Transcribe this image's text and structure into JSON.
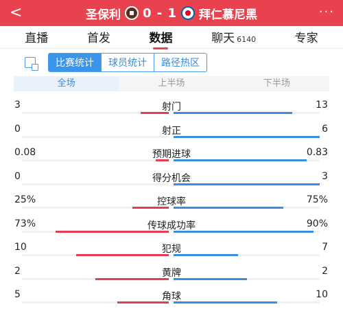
{
  "header": {
    "back_icon": "chevron-left-icon",
    "more_icon": "more-dots-icon",
    "home_team": "圣保利",
    "home_crest": "st-pauli-crest-icon",
    "score": "0 - 1",
    "away_crest": "bayern-crest-icon",
    "away_team": "拜仁慕尼黑",
    "more_label": "···",
    "back_label": "<"
  },
  "nav": {
    "tabs": [
      {
        "label": "直播"
      },
      {
        "label": "首发"
      },
      {
        "label": "数据"
      },
      {
        "label": "聊天",
        "badge": "6140"
      },
      {
        "label": "专家"
      }
    ],
    "active": "数据"
  },
  "subnav": {
    "icon": "compare-icon",
    "segments": [
      "比赛统计",
      "球员统计",
      "路径热区"
    ],
    "active": "比赛统计"
  },
  "periods": {
    "items": [
      "全场",
      "上半场",
      "下半场"
    ],
    "active": "全场"
  },
  "colors": {
    "header_bg": "#e8424e",
    "home_bar": "#e63a56",
    "away_bar": "#3a8ee0",
    "accent_blue": "#3b95ea"
  },
  "stats": [
    {
      "label": "射门",
      "home": "3",
      "away": "13",
      "home_share": 0.19,
      "away_share": 0.81
    },
    {
      "label": "射正",
      "home": "0",
      "away": "6",
      "home_share": 0.0,
      "away_share": 1.0
    },
    {
      "label": "预期进球",
      "home": "0.08",
      "away": "0.83",
      "home_share": 0.09,
      "away_share": 0.91
    },
    {
      "label": "得分机会",
      "home": "0",
      "away": "3",
      "home_share": 0.0,
      "away_share": 1.0
    },
    {
      "label": "控球率",
      "home": "25%",
      "away": "75%",
      "home_share": 0.25,
      "away_share": 0.75
    },
    {
      "label": "传球成功率",
      "home": "73%",
      "away": "90%",
      "home_share": 0.77,
      "away_share": 0.96
    },
    {
      "label": "犯规",
      "home": "10",
      "away": "7",
      "home_share": 0.63,
      "away_share": 0.44
    },
    {
      "label": "黄牌",
      "home": "2",
      "away": "2",
      "home_share": 0.5,
      "away_share": 0.5
    },
    {
      "label": "角球",
      "home": "5",
      "away": "10",
      "home_share": 0.35,
      "away_share": 0.71
    }
  ]
}
